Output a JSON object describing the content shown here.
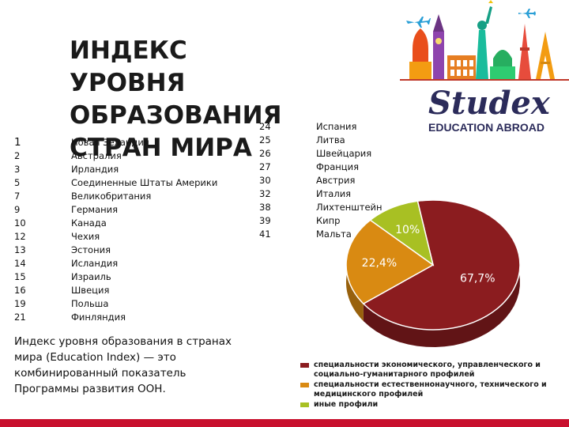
{
  "title": "ИНДЕКС УРОВНЯ ОБРАЗОВАНИЯ СТРАН МИРА",
  "ranking_left": {
    "ranks": [
      "1",
      "2",
      "3",
      "5",
      "7",
      "9",
      "10",
      "12",
      "13",
      "14",
      "15",
      "16",
      "19",
      "21"
    ],
    "countries": [
      "Новая Зеландия",
      "Австралия",
      "Ирландия",
      "Соединенные Штаты Америки",
      "Великобритания",
      "Германия",
      "Канада",
      "Чехия",
      "Эстония",
      " Исландия",
      " Израиль",
      "Швеция",
      "Польша",
      "Финляндия"
    ]
  },
  "ranking_right": {
    "ranks": [
      "24",
      "25",
      "26",
      "27",
      "30",
      "32",
      "38",
      "39",
      "41"
    ],
    "countries": [
      "Испания",
      "Литва",
      "Швейцария",
      "Франция",
      "Австрия",
      "Италия",
      "Лихтенштейн",
      "Кипр",
      "Мальта"
    ]
  },
  "description": "Индекс уровня образования в странах мира (Education Index) — это комбинированный показатель Программы развития ООН.",
  "logo": {
    "brand": "Studex",
    "subtitle": "EDUCATION ABROAD"
  },
  "chart_data": {
    "type": "pie",
    "labels": [
      "67,7%",
      "22,4%",
      "10%"
    ],
    "values": [
      67.7,
      22.4,
      10
    ],
    "colors": [
      "#8b1c1f",
      "#d98a12",
      "#a8c023"
    ],
    "legend": [
      "специальности экономического, управленческого и социально-гуманитарного профилей",
      "специальности естественнонаучного, технического и медицинского профилей",
      "иные профили"
    ],
    "legend_placement": "bottom"
  },
  "colors": {
    "accent_bar": "#c8102e",
    "logo_text": "#2b2b5a"
  }
}
